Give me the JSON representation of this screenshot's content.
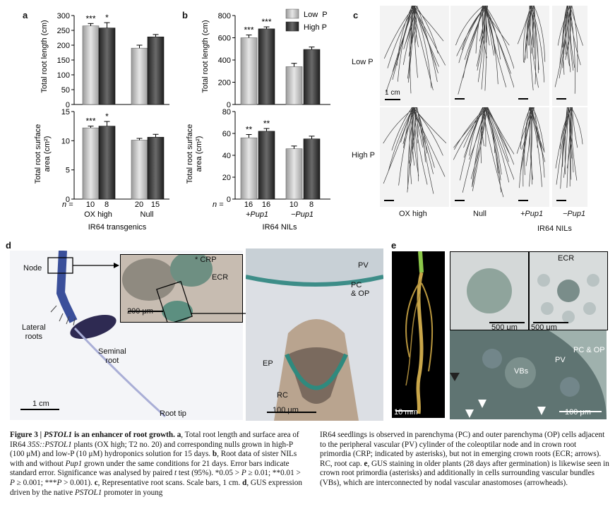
{
  "figure": {
    "panel_letters": [
      "a",
      "b",
      "c",
      "d",
      "e"
    ],
    "panel_a": {
      "top_ylabel": "Total root length (cm)",
      "bottom_ylabel_l1": "Total root surface",
      "bottom_ylabel_l2": "area (cm²)",
      "n_prefix": "n = ",
      "n_values": [
        "10",
        "8",
        "20",
        "15"
      ],
      "groups": [
        "OX high",
        "Null"
      ],
      "xlabel": "IR64 transgenics"
    },
    "panel_b": {
      "top_ylabel": "Total root length (cm)",
      "bottom_ylabel_l1": "Total root surface",
      "bottom_ylabel_l2": "area (cm²)",
      "legend": [
        "Low  P",
        "High P"
      ],
      "n_prefix": "n = ",
      "n_values": [
        "16",
        "16",
        "10",
        "8"
      ],
      "groups": [
        "+Pup1",
        "−Pup1"
      ],
      "xlabel": "IR64 NILs"
    },
    "panel_c": {
      "row_labels": [
        "Low P",
        "High P"
      ],
      "scale": "1 cm",
      "col_labels": [
        "OX high",
        "Null",
        "+Pup1",
        "−Pup1"
      ],
      "group_label": "IR64 NILs"
    },
    "panel_d": {
      "node": "Node",
      "crp": "* CRP",
      "ecr": "ECR",
      "scale_inset": "200 μm",
      "lateral": "Lateral",
      "roots": "roots",
      "seminal": "Seminal",
      "root": "root",
      "scale_main": "1 cm",
      "root_tip": "Root tip",
      "pv": "PV",
      "pc": "PC",
      "op": "& OP",
      "ep": "EP",
      "rc": "RC",
      "scale_micro": "100 μm"
    },
    "panel_e": {
      "ecr": "ECR",
      "scale1": "500 μm",
      "scale2": "500 μm",
      "pcop": "PC & OP",
      "pv": "PV",
      "vbs": "VBs",
      "scale_plant": "10 mm",
      "scale_micro": "100 μm"
    }
  },
  "chart_data": [
    {
      "type": "bar",
      "panel": "a-top",
      "categories": [
        "OX high",
        "Null"
      ],
      "series": [
        {
          "values": [
            265,
            190
          ]
        },
        {
          "values": [
            258,
            228
          ]
        }
      ],
      "errors": [
        [
          8,
          10
        ],
        [
          18,
          8
        ]
      ],
      "significance": [
        [
          "***",
          ""
        ],
        [
          "*",
          ""
        ]
      ],
      "ylabel": "Total root length (cm)",
      "ylim": [
        0,
        300
      ],
      "yticks": [
        0,
        50,
        100,
        150,
        200,
        250,
        300
      ]
    },
    {
      "type": "bar",
      "panel": "a-bottom",
      "categories": [
        "OX high",
        "Null"
      ],
      "series": [
        {
          "values": [
            12.2,
            10.1
          ]
        },
        {
          "values": [
            12.5,
            10.6
          ]
        }
      ],
      "errors": [
        [
          0.3,
          0.3
        ],
        [
          0.8,
          0.5
        ]
      ],
      "significance": [
        [
          "***",
          ""
        ],
        [
          "*",
          ""
        ]
      ],
      "ylabel": "Total root surface area (cm²)",
      "ylim": [
        0,
        15
      ],
      "yticks": [
        0,
        5,
        10,
        15
      ]
    },
    {
      "type": "bar",
      "panel": "b-top",
      "categories": [
        "+Pup1",
        "−Pup1"
      ],
      "series": [
        {
          "name": "Low  P",
          "values": [
            600,
            340
          ]
        },
        {
          "name": "High P",
          "values": [
            680,
            495
          ]
        }
      ],
      "errors": [
        [
          25,
          30
        ],
        [
          18,
          22
        ]
      ],
      "significance": [
        [
          "***",
          ""
        ],
        [
          "***",
          ""
        ]
      ],
      "ylabel": "Total root length (cm)",
      "ylim": [
        0,
        800
      ],
      "yticks": [
        0,
        200,
        400,
        600,
        800
      ]
    },
    {
      "type": "bar",
      "panel": "b-bottom",
      "categories": [
        "+Pup1",
        "−Pup1"
      ],
      "series": [
        {
          "name": "Low  P",
          "values": [
            56,
            46
          ]
        },
        {
          "name": "High P",
          "values": [
            62,
            55
          ]
        }
      ],
      "errors": [
        [
          3,
          2.5
        ],
        [
          2.5,
          2.5
        ]
      ],
      "significance": [
        [
          "**",
          ""
        ],
        [
          "**",
          ""
        ]
      ],
      "ylabel": "Total root surface area (cm²)",
      "ylim": [
        0,
        80
      ],
      "yticks": [
        0,
        20,
        40,
        60,
        80
      ]
    }
  ],
  "caption": {
    "left": [
      {
        "t": "Figure 3 | ",
        "b": true
      },
      {
        "t": "PSTOL1",
        "b": true,
        "i": true
      },
      {
        "t": " is an enhancer of root growth. ",
        "b": true
      },
      {
        "t": "a",
        "b": true
      },
      {
        "t": ", Total root length and surface area of IR64 "
      },
      {
        "t": "35S::PSTOL1",
        "i": true
      },
      {
        "t": " plants (OX high; T2 no. 20) and corresponding nulls grown in high-P (100 μM) and low-P (10 μM) hydroponics solution for 15 days. "
      },
      {
        "t": "b",
        "b": true
      },
      {
        "t": ", Root data of sister NILs with and without "
      },
      {
        "t": "Pup1",
        "i": true
      },
      {
        "t": " grown under the same conditions for 21 days. Error bars indicate standard error. Significance was analysed by paired "
      },
      {
        "t": "t",
        "i": true
      },
      {
        "t": " test (95%). *0.05 > "
      },
      {
        "t": "P",
        "i": true
      },
      {
        "t": " ≥ 0.01; **0.01 > "
      },
      {
        "t": "P",
        "i": true
      },
      {
        "t": " ≥ 0.001; ***"
      },
      {
        "t": "P",
        "i": true
      },
      {
        "t": " > 0.001). "
      },
      {
        "t": "c",
        "b": true
      },
      {
        "t": ", Representative root scans. Scale bars, 1 cm. "
      },
      {
        "t": "d",
        "b": true
      },
      {
        "t": ", GUS expression driven by the native "
      },
      {
        "t": "PSTOL1",
        "i": true
      },
      {
        "t": " promoter in young"
      }
    ],
    "right": [
      {
        "t": "IR64 seedlings is observed in parenchyma (PC) and outer parenchyma (OP) cells adjacent to the peripheral vascular (PV) cylinder of the coleoptilar node and in crown root primordia (CRP; indicated by asterisks), but not in emerging crown roots (ECR; arrows). RC, root cap. "
      },
      {
        "t": "e",
        "b": true
      },
      {
        "t": ", GUS staining in older plants (28 days after germination) is likewise seen in crown root primordia (asterisks) and additionally in cells surrounding vascular bundles (VBs), which are interconnected by nodal vascular anastomoses (arrowheads)."
      }
    ]
  }
}
